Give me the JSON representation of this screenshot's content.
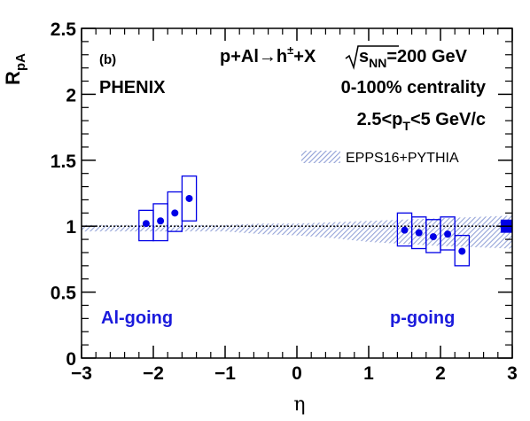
{
  "chart_data": {
    "type": "scatter",
    "xlabel": "η",
    "ylabel_main": "R",
    "ylabel_sub": "pA",
    "xlim": [
      -3,
      3
    ],
    "ylim": [
      0,
      2.5
    ],
    "x_ticks": [
      -3,
      -2,
      -1,
      0,
      1,
      2,
      3
    ],
    "x_tick_labels": [
      "−3",
      "−2",
      "−1",
      "0",
      "1",
      "2",
      "3"
    ],
    "y_ticks": [
      0,
      0.5,
      1,
      1.5,
      2,
      2.5
    ],
    "y_tick_labels": [
      "0",
      "0.5",
      "1",
      "1.5",
      "2",
      "2.5"
    ],
    "reference_line": 1,
    "panel_label": "(b)",
    "experiment": "PHENIX",
    "reaction": "p+Al→h",
    "reaction_sup": "±",
    "reaction_tail": "+X",
    "sqrt_label": "s",
    "sqrt_sub": "NN",
    "energy": "=200 GeV",
    "centrality": "0-100% centrality",
    "pt_prefix": "2.5<p",
    "pt_sub": "T",
    "pt_suffix": "<5 GeV/c",
    "legend_label": "EPPS16+PYTHIA",
    "region_left_label": "Al-going",
    "region_right_label": "p-going",
    "series": [
      {
        "points": [
          {
            "x": -2.1,
            "y": 1.02,
            "syst_low": 0.89,
            "syst_high": 1.12
          },
          {
            "x": -1.9,
            "y": 1.04,
            "syst_low": 0.89,
            "syst_high": 1.17
          },
          {
            "x": -1.7,
            "y": 1.1,
            "syst_low": 0.96,
            "syst_high": 1.26
          },
          {
            "x": -1.5,
            "y": 1.21,
            "syst_low": 1.04,
            "syst_high": 1.38
          },
          {
            "x": 1.5,
            "y": 0.97,
            "syst_low": 0.85,
            "syst_high": 1.1
          },
          {
            "x": 1.7,
            "y": 0.95,
            "syst_low": 0.83,
            "syst_high": 1.07
          },
          {
            "x": 1.9,
            "y": 0.92,
            "syst_low": 0.8,
            "syst_high": 1.05
          },
          {
            "x": 2.1,
            "y": 0.94,
            "syst_low": 0.82,
            "syst_high": 1.07
          },
          {
            "x": 2.3,
            "y": 0.81,
            "syst_low": 0.7,
            "syst_high": 0.93
          }
        ]
      }
    ],
    "model_band": {
      "x": [
        -3.0,
        -2.0,
        -1.0,
        -0.5,
        0.0,
        0.5,
        1.0,
        2.0,
        3.0
      ],
      "low": [
        0.96,
        0.96,
        0.96,
        0.94,
        0.93,
        0.91,
        0.88,
        0.85,
        0.83
      ],
      "high": [
        1.01,
        1.01,
        1.01,
        1.02,
        1.02,
        1.03,
        1.04,
        1.06,
        1.08
      ]
    },
    "global_uncertainty": {
      "x": 2.9,
      "low": 0.95,
      "high": 1.05
    },
    "colors": {
      "data": "#0000e6",
      "band": "#a8b4dc",
      "axis": "#000000"
    }
  }
}
